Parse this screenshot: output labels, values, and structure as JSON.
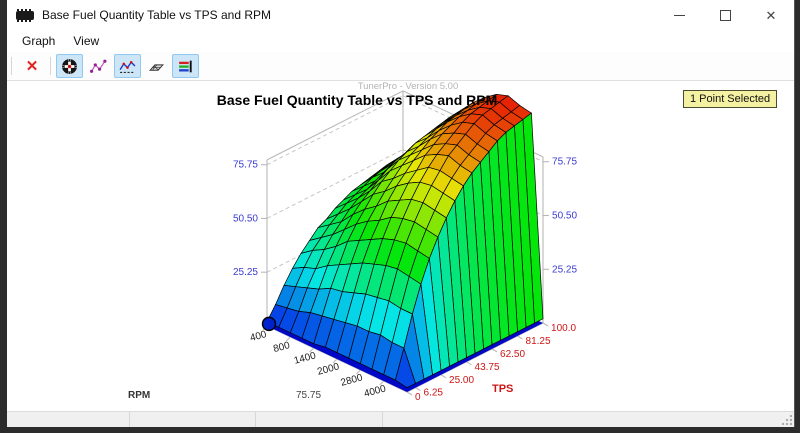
{
  "window": {
    "title": "Base Fuel Quantity Table vs TPS and RPM",
    "watermark": "TunerPro - Version 5.00",
    "badge": "1 Point Selected",
    "controls": [
      "minimize",
      "maximize",
      "close"
    ],
    "close_glyph": "✕"
  },
  "menu": {
    "items": [
      "Graph",
      "View"
    ]
  },
  "toolbar": {
    "delete_glyph": "✕",
    "buttons": [
      {
        "name": "delete-graph",
        "selected": false
      },
      {
        "name": "pan-3d",
        "selected": true
      },
      {
        "name": "scatter-mode",
        "selected": false
      },
      {
        "name": "line-mode",
        "selected": true
      },
      {
        "name": "mesh-3d-mode",
        "selected": false
      },
      {
        "name": "color-legend",
        "selected": true
      }
    ]
  },
  "chart_data": {
    "type": "surface3d",
    "title": "Base Fuel Quantity Table vs TPS and RPM",
    "x_axis": {
      "label": "RPM",
      "tick_labels": [
        "400",
        "800",
        "1400",
        "2000",
        "2800",
        "4000"
      ],
      "tick_indices": [
        0,
        2,
        4,
        6,
        8,
        10
      ],
      "points": [
        400,
        600,
        800,
        1100,
        1400,
        1700,
        2000,
        2400,
        2800,
        3400,
        4000,
        4400,
        4800
      ]
    },
    "y_axis": {
      "label": "TPS",
      "tick_labels": [
        "0",
        "6.25",
        "25.00",
        "43.75",
        "62.50",
        "81.25",
        "100.0"
      ],
      "tick_indices": [
        0,
        1,
        4,
        7,
        10,
        13,
        16
      ],
      "points": [
        0,
        6.25,
        12.5,
        18.75,
        25,
        31.25,
        37.5,
        43.75,
        50,
        56.25,
        62.5,
        68.75,
        75,
        81.25,
        87.5,
        93.75,
        100
      ]
    },
    "z_axis": {
      "ticks": [
        25.25,
        50.5,
        75.75
      ],
      "max": 101,
      "bottom_center_label": "75.75"
    },
    "values": [
      [
        2,
        2,
        2,
        2,
        2,
        3,
        3,
        3,
        3,
        3,
        3,
        3,
        2
      ],
      [
        8,
        9,
        10,
        12,
        13,
        14,
        15,
        16,
        16,
        17,
        16,
        16,
        2
      ],
      [
        15,
        17,
        19,
        21,
        24,
        25,
        27,
        29,
        30,
        31,
        30,
        30,
        2
      ],
      [
        21,
        24,
        26,
        30,
        33,
        36,
        39,
        41,
        43,
        44,
        43,
        42,
        2
      ],
      [
        26,
        30,
        33,
        37,
        42,
        45,
        48,
        51,
        53,
        54,
        53,
        52,
        2
      ],
      [
        30,
        34,
        38,
        43,
        48,
        52,
        55,
        59,
        61,
        62,
        61,
        60,
        2
      ],
      [
        34,
        38,
        42,
        48,
        53,
        57,
        62,
        65,
        68,
        69,
        68,
        67,
        2
      ],
      [
        36,
        41,
        46,
        52,
        58,
        62,
        67,
        71,
        74,
        75,
        74,
        73,
        2
      ],
      [
        39,
        44,
        49,
        55,
        62,
        66,
        71,
        75,
        79,
        80,
        79,
        78,
        2
      ],
      [
        41,
        46,
        51,
        58,
        65,
        70,
        75,
        80,
        83,
        85,
        83,
        82,
        2
      ],
      [
        43,
        48,
        53,
        61,
        68,
        73,
        78,
        83,
        86,
        88,
        86,
        85,
        2
      ],
      [
        44,
        50,
        55,
        63,
        70,
        75,
        81,
        86,
        89,
        91,
        89,
        88,
        2
      ],
      [
        45,
        51,
        57,
        64,
        72,
        77,
        83,
        88,
        92,
        94,
        92,
        91,
        2
      ],
      [
        46,
        52,
        58,
        66,
        73,
        79,
        85,
        90,
        94,
        96,
        94,
        93,
        2
      ],
      [
        47,
        53,
        59,
        67,
        74,
        80,
        86,
        91,
        95,
        97,
        95,
        94,
        2
      ],
      [
        47,
        53,
        59,
        67,
        75,
        81,
        87,
        92,
        96,
        98,
        96,
        95,
        2
      ],
      [
        48,
        54,
        60,
        68,
        76,
        82,
        88,
        93,
        97,
        99,
        97,
        96,
        2
      ]
    ],
    "selected_point": {
      "rpm": 400,
      "tps": 0
    },
    "colors": {
      "z_label": "#3b3bd2",
      "tps_label": "#cc1616",
      "rpm_label": "#222222",
      "frame": "#b9b9b9",
      "floor": "#0008c8",
      "selected_dot": "#0022cc"
    }
  }
}
